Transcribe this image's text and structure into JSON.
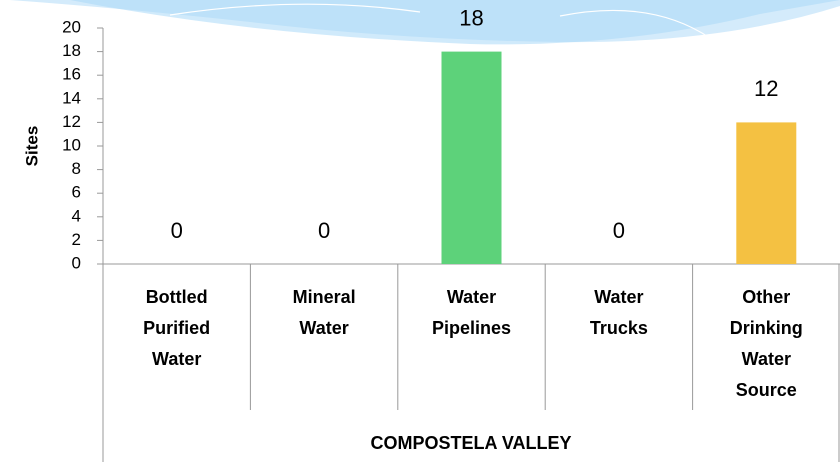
{
  "chart_data": {
    "type": "bar",
    "y_label": "Sites",
    "group_label": "COMPOSTELA VALLEY",
    "categories": [
      "Bottled Purified Water",
      "Mineral Water",
      "Water Pipelines",
      "Water Trucks",
      "Other Drinking Water Source"
    ],
    "values": [
      0,
      0,
      18,
      0,
      12
    ],
    "colors": [
      "#5dd27a",
      "#5dd27a",
      "#5dd27a",
      "#5dd27a",
      "#f4c142"
    ],
    "ylim": [
      0,
      20
    ],
    "yticks": [
      0,
      2,
      4,
      6,
      8,
      10,
      12,
      14,
      16,
      18,
      20
    ],
    "grid": false
  }
}
